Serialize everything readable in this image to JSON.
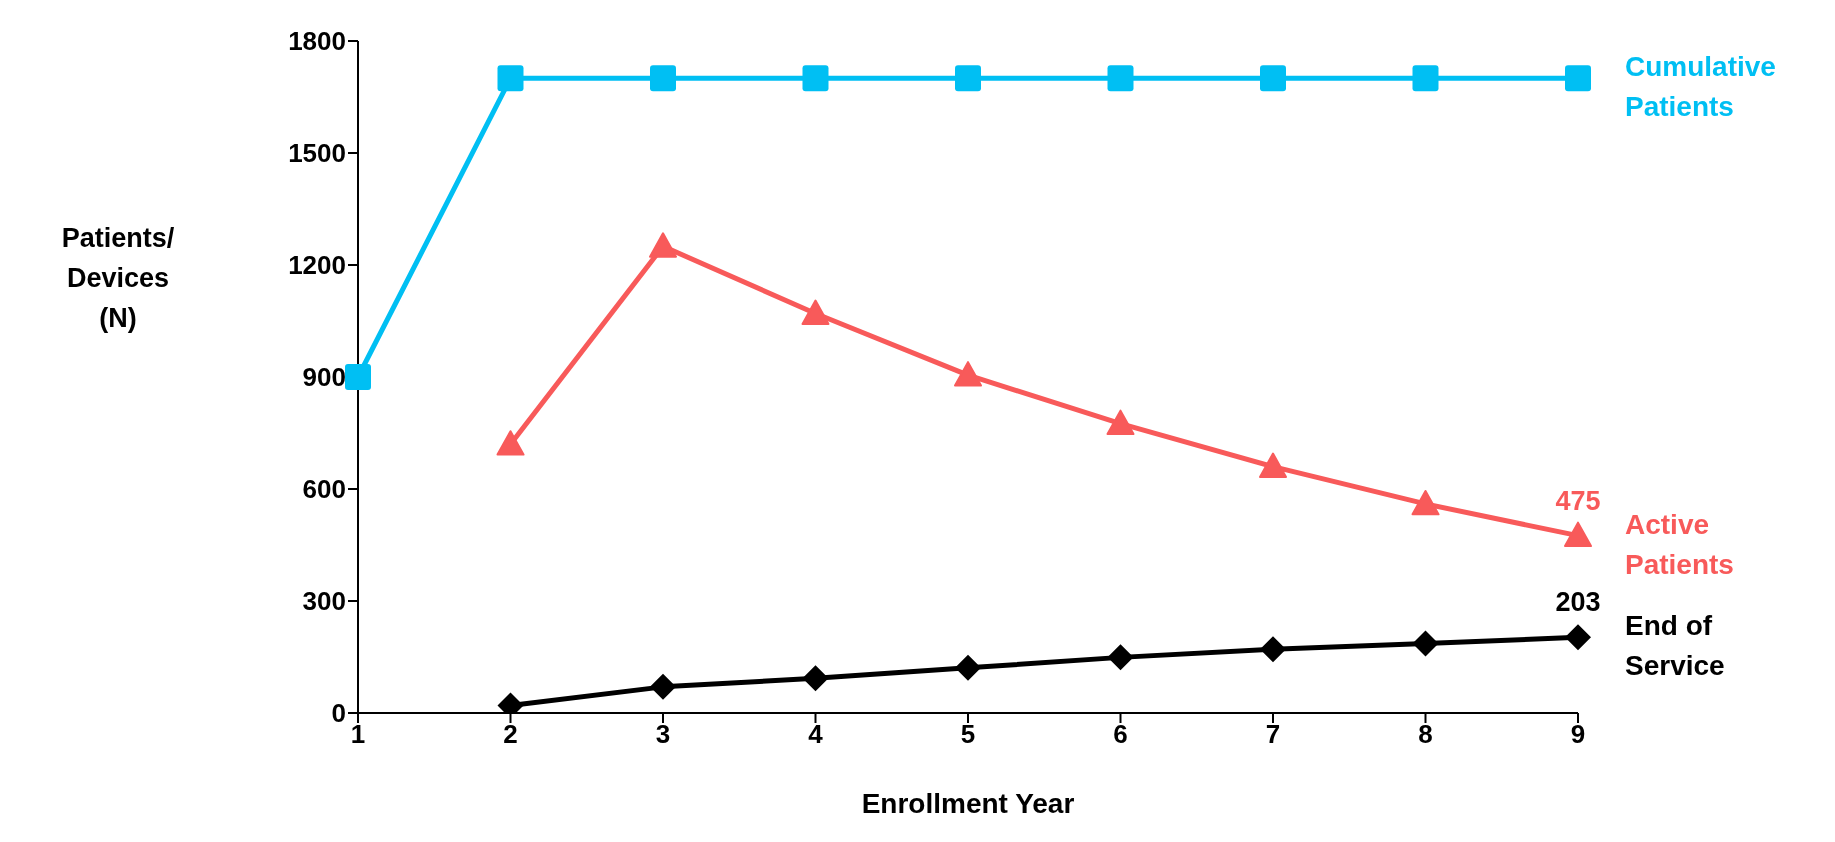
{
  "chart_data": {
    "type": "line",
    "xlabel": "Enrollment Year",
    "ylabel": "Patients/ Devices (N)",
    "categories": [
      "1",
      "2",
      "3",
      "4",
      "5",
      "6",
      "7",
      "8",
      "9"
    ],
    "ylim": [
      0,
      1800
    ],
    "yticks": [
      0,
      300,
      600,
      900,
      1200,
      1500,
      1800
    ],
    "series": [
      {
        "name": "Cumulative Patients",
        "color": "#00bff3",
        "marker": "square",
        "values": [
          900,
          1700,
          1700,
          1700,
          1700,
          1700,
          1700,
          1700,
          1700
        ]
      },
      {
        "name": "Active Patients",
        "color": "#f85a5a",
        "marker": "triangle",
        "values": [
          null,
          720,
          1250,
          1070,
          905,
          775,
          660,
          560,
          475
        ],
        "value_labels": [
          null,
          null,
          null,
          null,
          null,
          null,
          null,
          null,
          "475"
        ]
      },
      {
        "name": "End of Service",
        "color": "#000000",
        "marker": "diamond",
        "values": [
          null,
          20,
          70,
          93,
          121,
          149,
          171,
          186,
          203
        ],
        "value_labels": [
          null,
          null,
          null,
          null,
          null,
          null,
          null,
          null,
          "203"
        ]
      }
    ]
  }
}
